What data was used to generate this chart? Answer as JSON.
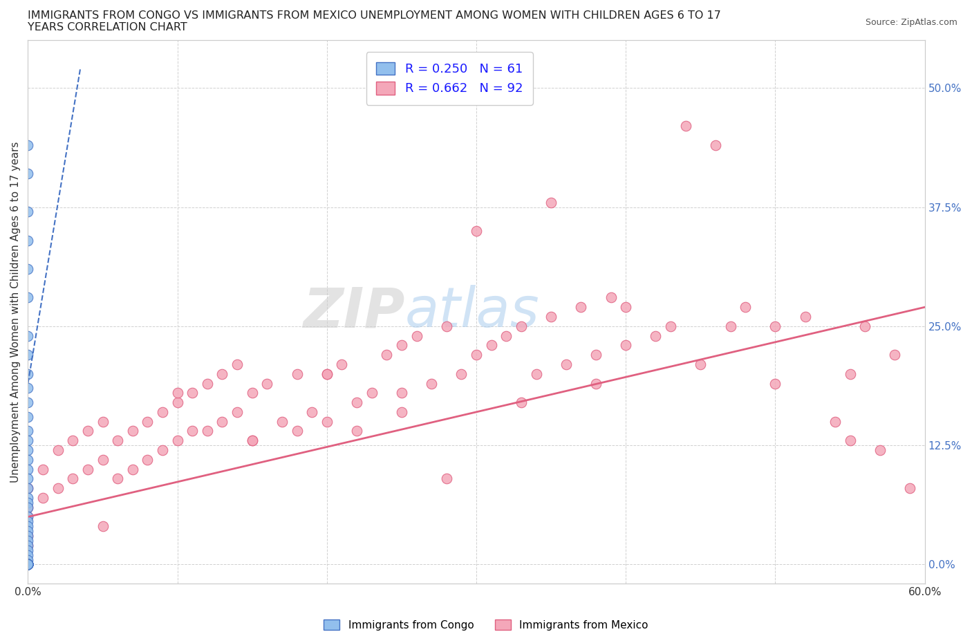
{
  "title": "IMMIGRANTS FROM CONGO VS IMMIGRANTS FROM MEXICO UNEMPLOYMENT AMONG WOMEN WITH CHILDREN AGES 6 TO 17\nYEARS CORRELATION CHART",
  "source_text": "Source: ZipAtlas.com",
  "ylabel": "Unemployment Among Women with Children Ages 6 to 17 years",
  "xlim": [
    0.0,
    0.6
  ],
  "ylim": [
    -0.02,
    0.55
  ],
  "xtick_positions": [
    0.0,
    0.1,
    0.2,
    0.3,
    0.4,
    0.5,
    0.6
  ],
  "xtick_labels": [
    "0.0%",
    "",
    "",
    "",
    "",
    "",
    "60.0%"
  ],
  "ytick_positions": [
    0.0,
    0.125,
    0.25,
    0.375,
    0.5
  ],
  "ytick_labels": [
    "0.0%",
    "12.5%",
    "25.0%",
    "37.5%",
    "50.0%"
  ],
  "congo_color": "#92BFED",
  "congo_edge": "#4472C4",
  "mexico_color": "#F4A7B9",
  "mexico_edge": "#E06080",
  "congo_R": 0.25,
  "congo_N": 61,
  "mexico_R": 0.662,
  "mexico_N": 92,
  "watermark_text": "ZIPatlas",
  "background_color": "#ffffff",
  "grid_color": "#d0d0d0",
  "congo_scatter_x": [
    0.0,
    0.0,
    0.0,
    0.0,
    0.0,
    0.0,
    0.0,
    0.0,
    0.0,
    0.0,
    0.0,
    0.0,
    0.0,
    0.0,
    0.0,
    0.0,
    0.0,
    0.0,
    0.0,
    0.0,
    0.0,
    0.0,
    0.0,
    0.0,
    0.0,
    0.0,
    0.0,
    0.0,
    0.0,
    0.0,
    0.0,
    0.0,
    0.0,
    0.0,
    0.0,
    0.0,
    0.0,
    0.0,
    0.0,
    0.0,
    0.0,
    0.0,
    0.0,
    0.0,
    0.0,
    0.0,
    0.0,
    0.0,
    0.0,
    0.0,
    0.0,
    0.0,
    0.0,
    0.0,
    0.0,
    0.0,
    0.0,
    0.0,
    0.0,
    0.0,
    0.0
  ],
  "congo_scatter_y": [
    0.44,
    0.41,
    0.37,
    0.34,
    0.31,
    0.28,
    0.24,
    0.22,
    0.2,
    0.185,
    0.17,
    0.155,
    0.14,
    0.13,
    0.12,
    0.11,
    0.1,
    0.09,
    0.08,
    0.07,
    0.065,
    0.06,
    0.05,
    0.045,
    0.04,
    0.035,
    0.03,
    0.025,
    0.02,
    0.015,
    0.01,
    0.005,
    0.0,
    0.0,
    0.0,
    0.0,
    0.0,
    0.0,
    0.0,
    0.0,
    0.0,
    0.0,
    0.0,
    0.0,
    0.0,
    0.0,
    0.0,
    0.0,
    0.0,
    0.0,
    0.0,
    0.0,
    0.0,
    0.0,
    0.0,
    0.0,
    0.0,
    0.0,
    0.0,
    0.0,
    0.0
  ],
  "mexico_scatter_x": [
    0.0,
    0.0,
    0.0,
    0.0,
    0.0,
    0.01,
    0.01,
    0.02,
    0.02,
    0.03,
    0.03,
    0.04,
    0.04,
    0.05,
    0.05,
    0.06,
    0.06,
    0.07,
    0.07,
    0.08,
    0.08,
    0.09,
    0.09,
    0.1,
    0.1,
    0.11,
    0.11,
    0.12,
    0.12,
    0.13,
    0.13,
    0.14,
    0.14,
    0.15,
    0.15,
    0.16,
    0.17,
    0.18,
    0.18,
    0.19,
    0.2,
    0.2,
    0.21,
    0.22,
    0.23,
    0.24,
    0.25,
    0.25,
    0.26,
    0.27,
    0.28,
    0.29,
    0.3,
    0.31,
    0.32,
    0.33,
    0.34,
    0.35,
    0.36,
    0.37,
    0.38,
    0.39,
    0.4,
    0.42,
    0.43,
    0.44,
    0.46,
    0.47,
    0.48,
    0.5,
    0.52,
    0.54,
    0.55,
    0.56,
    0.57,
    0.58,
    0.59,
    0.3,
    0.35,
    0.4,
    0.25,
    0.2,
    0.15,
    0.1,
    0.05,
    0.45,
    0.5,
    0.55,
    0.22,
    0.28,
    0.33,
    0.38
  ],
  "mexico_scatter_y": [
    0.08,
    0.06,
    0.05,
    0.03,
    0.02,
    0.1,
    0.07,
    0.12,
    0.08,
    0.13,
    0.09,
    0.14,
    0.1,
    0.15,
    0.11,
    0.13,
    0.09,
    0.14,
    0.1,
    0.15,
    0.11,
    0.16,
    0.12,
    0.17,
    0.13,
    0.18,
    0.14,
    0.19,
    0.14,
    0.2,
    0.15,
    0.21,
    0.16,
    0.18,
    0.13,
    0.19,
    0.15,
    0.2,
    0.14,
    0.16,
    0.2,
    0.15,
    0.21,
    0.17,
    0.18,
    0.22,
    0.23,
    0.18,
    0.24,
    0.19,
    0.25,
    0.2,
    0.22,
    0.23,
    0.24,
    0.25,
    0.2,
    0.26,
    0.21,
    0.27,
    0.22,
    0.28,
    0.23,
    0.24,
    0.25,
    0.46,
    0.44,
    0.25,
    0.27,
    0.25,
    0.26,
    0.15,
    0.2,
    0.25,
    0.12,
    0.22,
    0.08,
    0.35,
    0.38,
    0.27,
    0.16,
    0.2,
    0.13,
    0.18,
    0.04,
    0.21,
    0.19,
    0.13,
    0.14,
    0.09,
    0.17,
    0.19
  ],
  "congo_trend_x0": 0.0,
  "congo_trend_y0": 0.19,
  "congo_trend_x1": 0.035,
  "congo_trend_y1": 0.52,
  "mexico_trend_x0": 0.0,
  "mexico_trend_y0": 0.05,
  "mexico_trend_x1": 0.6,
  "mexico_trend_y1": 0.27
}
